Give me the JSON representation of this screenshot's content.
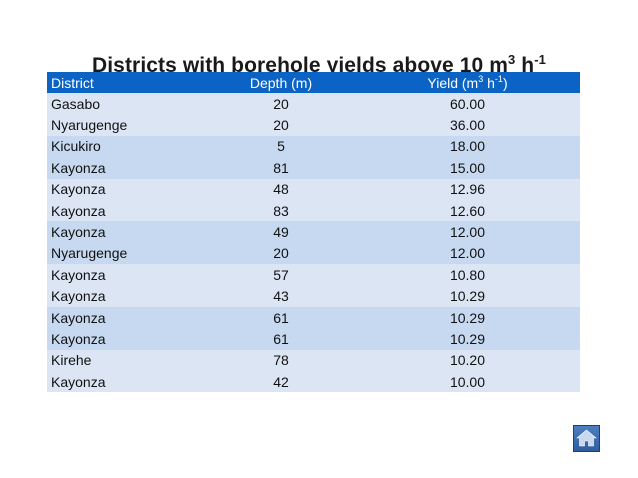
{
  "title": {
    "text": "Districts with borehole yields above 10 m",
    "unit_exp": "3",
    "unit_mid": " h",
    "unit_exp2": "-1"
  },
  "table": {
    "headers": {
      "district": "District",
      "depth": "Depth (m)",
      "yield_prefix": "Yield (m",
      "yield_exp": "3",
      "yield_mid": " h",
      "yield_exp2": "-1",
      "yield_suffix": ")"
    },
    "rows": [
      {
        "district": "Gasabo",
        "depth": "20",
        "yield": "60.00"
      },
      {
        "district": "Nyarugenge",
        "depth": "20",
        "yield": "36.00"
      },
      {
        "district": "Kicukiro",
        "depth": "5",
        "yield": "18.00"
      },
      {
        "district": "Kayonza",
        "depth": "81",
        "yield": "15.00"
      },
      {
        "district": "Kayonza",
        "depth": "48",
        "yield": "12.96"
      },
      {
        "district": "Kayonza",
        "depth": "83",
        "yield": "12.60"
      },
      {
        "district": "Kayonza",
        "depth": "49",
        "yield": "12.00"
      },
      {
        "district": "Nyarugenge",
        "depth": "20",
        "yield": "12.00"
      },
      {
        "district": "Kayonza",
        "depth": "57",
        "yield": "10.80"
      },
      {
        "district": "Kayonza",
        "depth": "43",
        "yield": "10.29"
      },
      {
        "district": "Kayonza",
        "depth": "61",
        "yield": "10.29"
      },
      {
        "district": "Kayonza",
        "depth": "61",
        "yield": "10.29"
      },
      {
        "district": "Kirehe",
        "depth": "78",
        "yield": "10.20"
      },
      {
        "district": "Kayonza",
        "depth": "42",
        "yield": "10.00"
      }
    ]
  },
  "colors": {
    "header_bg": "#0a63c5",
    "band_light": "#dbe5f3",
    "band_dark": "#c7d9f0"
  },
  "nav": {
    "home_icon": "home-icon"
  }
}
